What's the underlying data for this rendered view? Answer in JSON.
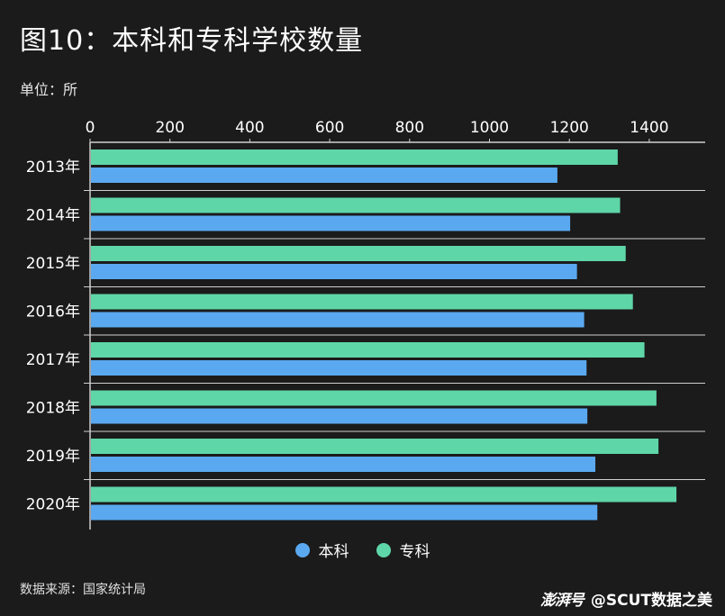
{
  "title": "图10：本科和专科学校数量",
  "unit_label": "单位：所",
  "source": "数据来源：国家统计局",
  "watermark": {
    "logo": "澎湃号",
    "text": "@SCUT数据之美"
  },
  "colors": {
    "background": "#1b1b1b",
    "benke": "#5aa9f0",
    "zhuanke": "#5fd6a8",
    "grid": "#cfcfcf"
  },
  "chart_data": {
    "type": "bar",
    "orientation": "horizontal",
    "categories": [
      "2013年",
      "2014年",
      "2015年",
      "2016年",
      "2017年",
      "2018年",
      "2019年",
      "2020年"
    ],
    "series": [
      {
        "name": "专科",
        "values": [
          1321,
          1327,
          1341,
          1359,
          1388,
          1418,
          1423,
          1468
        ]
      },
      {
        "name": "本科",
        "values": [
          1170,
          1202,
          1219,
          1237,
          1243,
          1245,
          1265,
          1270
        ]
      }
    ],
    "x_ticks": [
      "0",
      "200",
      "400",
      "600",
      "800",
      "1000",
      "1200",
      "1400"
    ],
    "xlim": [
      0,
      1540
    ],
    "grid": true,
    "legend_position": "bottom"
  }
}
